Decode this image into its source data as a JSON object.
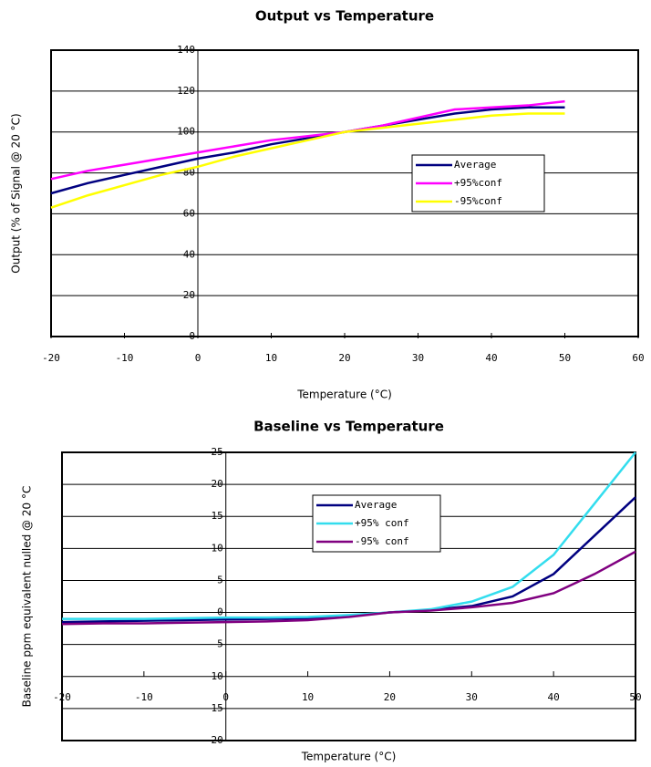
{
  "chart_data": [
    {
      "type": "line",
      "title": "Output vs Temperature",
      "x_label": "Temperature (°C)",
      "y_label": "Output (% of Signal @ 20 °C)",
      "x": [
        -20,
        -15,
        -10,
        -5,
        0,
        5,
        10,
        15,
        20,
        25,
        30,
        35,
        40,
        45,
        50
      ],
      "series": [
        {
          "name": "Average",
          "color": "#000080",
          "values": [
            70,
            75,
            79,
            83,
            87,
            90,
            94,
            97,
            100,
            103,
            106,
            109,
            111,
            112,
            112
          ]
        },
        {
          "name": "+95%conf",
          "color": "#ff00ff",
          "values": [
            77,
            81,
            84,
            87,
            90,
            93,
            96,
            98,
            100,
            103,
            107,
            111,
            112,
            113,
            115
          ]
        },
        {
          "name": "-95%conf",
          "color": "#ffff00",
          "values": [
            63,
            69,
            74,
            79,
            83,
            88,
            92,
            96,
            100,
            102,
            104,
            106,
            108,
            109,
            109
          ]
        }
      ],
      "xlim": [
        -20,
        60
      ],
      "xticks": [
        -20,
        -10,
        0,
        10,
        20,
        30,
        40,
        50,
        60
      ],
      "ylim": [
        0,
        140
      ],
      "yticks": [
        0,
        20,
        40,
        60,
        80,
        100,
        120,
        140
      ],
      "grid": true,
      "legend": "right"
    },
    {
      "type": "line",
      "title": "Baseline vs Temperature",
      "x_label": "Temperature (°C)",
      "y_label": "Baseline ppm equivalent nulled @ 20 °C",
      "x": [
        -20,
        -15,
        -10,
        -5,
        0,
        5,
        10,
        15,
        20,
        25,
        30,
        35,
        40,
        45,
        50
      ],
      "series": [
        {
          "name": "Average",
          "color": "#000080",
          "values": [
            -1.5,
            -1.4,
            -1.3,
            -1.2,
            -1.1,
            -1,
            -0.9,
            -0.5,
            0,
            0.4,
            1,
            2.5,
            6,
            12,
            18
          ]
        },
        {
          "name": "+95% conf",
          "color": "#33ddee",
          "values": [
            -1,
            -1,
            -1,
            -0.9,
            -0.8,
            -0.8,
            -0.7,
            -0.4,
            0,
            0.5,
            1.7,
            4,
            9,
            17,
            25
          ]
        },
        {
          "name": "-95% conf",
          "color": "#800080",
          "values": [
            -1.8,
            -1.7,
            -1.7,
            -1.6,
            -1.5,
            -1.4,
            -1.2,
            -0.7,
            0,
            0.3,
            0.8,
            1.5,
            3,
            6,
            9.5
          ]
        }
      ],
      "xlim": [
        -20,
        50
      ],
      "xticks": [
        -20,
        -10,
        0,
        10,
        20,
        30,
        40,
        50
      ],
      "ylim": [
        -20,
        25
      ],
      "yticks": [
        {
          "value": -20,
          "label": "20"
        },
        {
          "value": -15,
          "label": "15"
        },
        {
          "value": -10,
          "label": "10"
        },
        {
          "value": -5,
          "label": "5"
        },
        0,
        5,
        10,
        15,
        20,
        25
      ],
      "grid": true,
      "legend": "center"
    }
  ]
}
